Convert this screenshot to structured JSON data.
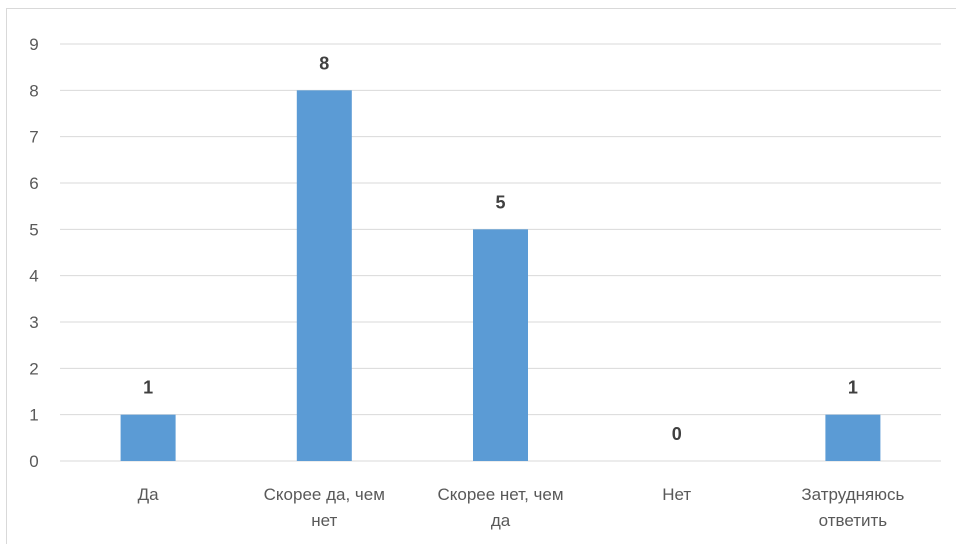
{
  "chart_data": {
    "type": "bar",
    "categories": [
      [
        "Да"
      ],
      [
        "Скорее да, чем",
        "нет"
      ],
      [
        "Скорее нет, чем",
        "да"
      ],
      [
        "Нет"
      ],
      [
        "Затрудняюсь",
        "ответить"
      ]
    ],
    "values": [
      1,
      8,
      5,
      0,
      1
    ],
    "data_labels": [
      "1",
      "8",
      "5",
      "0",
      "1"
    ],
    "title": "",
    "xlabel": "",
    "ylabel": "",
    "ylim": [
      0,
      9
    ],
    "yticks": [
      "0",
      "1",
      "2",
      "3",
      "4",
      "5",
      "6",
      "7",
      "8",
      "9"
    ],
    "grid": true,
    "legend": "none",
    "bar_color": "#5b9bd5",
    "grid_color": "#d9d9d9",
    "text_color": "#595959"
  }
}
